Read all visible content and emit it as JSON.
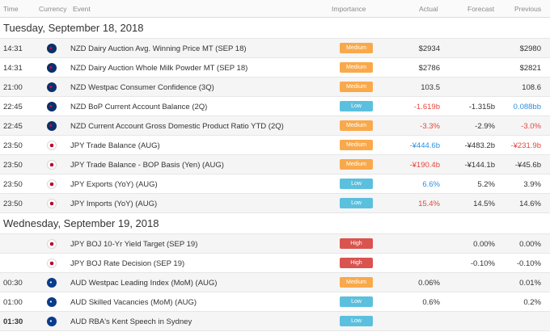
{
  "columns": {
    "time": "Time",
    "currency": "Currency",
    "event": "Event",
    "importance": "Importance",
    "actual": "Actual",
    "forecast": "Forecast",
    "previous": "Previous"
  },
  "colors": {
    "medium": "#f9a94b",
    "low": "#5bc0de",
    "high": "#d9534f",
    "negative": "#e6453c",
    "positive": "#2f8fe0"
  },
  "days": [
    {
      "date": "Tuesday, September 18, 2018",
      "events": [
        {
          "time": "14:31",
          "flag": "nzd-flag-icon",
          "event": "NZD Dairy Auction Avg. Winning Price MT (SEP 18)",
          "importance": "Medium",
          "actual": "$2934",
          "forecast": "",
          "previous": "$2980"
        },
        {
          "time": "14:31",
          "flag": "nzd-flag-icon",
          "event": "NZD Dairy Auction Whole Milk Powder MT (SEP 18)",
          "importance": "Medium",
          "actual": "$2786",
          "forecast": "",
          "previous": "$2821"
        },
        {
          "time": "21:00",
          "flag": "nzd-flag-icon",
          "event": "NZD Westpac Consumer Confidence (3Q)",
          "importance": "Medium",
          "actual": "103.5",
          "forecast": "",
          "previous": "108.6"
        },
        {
          "time": "22:45",
          "flag": "nzd-flag-icon",
          "event": "NZD BoP Current Account Balance (2Q)",
          "importance": "Low",
          "actual": "-1.619b",
          "forecast": "-1.315b",
          "previous": "0.088bb"
        },
        {
          "time": "22:45",
          "flag": "nzd-flag-icon",
          "event": "NZD Current Account Gross Domestic Product Ratio YTD (2Q)",
          "importance": "Medium",
          "actual": "-3.3%",
          "forecast": "-2.9%",
          "previous": "-3.0%"
        },
        {
          "time": "23:50",
          "flag": "jpy-flag-icon",
          "event": "JPY Trade Balance (AUG)",
          "importance": "Medium",
          "actual": "-¥444.6b",
          "forecast": "-¥483.2b",
          "previous": "-¥231.9b"
        },
        {
          "time": "23:50",
          "flag": "jpy-flag-icon",
          "event": "JPY Trade Balance - BOP Basis (Yen) (AUG)",
          "importance": "Medium",
          "actual": "-¥190.4b",
          "forecast": "-¥144.1b",
          "previous": "-¥45.6b"
        },
        {
          "time": "23:50",
          "flag": "jpy-flag-icon",
          "event": "JPY Exports (YoY) (AUG)",
          "importance": "Low",
          "actual": "6.6%",
          "forecast": "5.2%",
          "previous": "3.9%"
        },
        {
          "time": "23:50",
          "flag": "jpy-flag-icon",
          "event": "JPY Imports (YoY) (AUG)",
          "importance": "Low",
          "actual": "15.4%",
          "forecast": "14.5%",
          "previous": "14.6%"
        }
      ]
    },
    {
      "date": "Wednesday, September 19, 2018",
      "events": [
        {
          "time": "",
          "flag": "jpy-flag-icon",
          "event": "JPY BOJ 10-Yr Yield Target (SEP 19)",
          "importance": "High",
          "actual": "",
          "forecast": "0.00%",
          "previous": "0.00%"
        },
        {
          "time": "",
          "flag": "jpy-flag-icon",
          "event": "JPY BOJ Rate Decision (SEP 19)",
          "importance": "High",
          "actual": "",
          "forecast": "-0.10%",
          "previous": "-0.10%"
        },
        {
          "time": "00:30",
          "flag": "aud-flag-icon",
          "event": "AUD Westpac Leading Index (MoM) (AUG)",
          "importance": "Medium",
          "actual": "0.06%",
          "forecast": "",
          "previous": "0.01%"
        },
        {
          "time": "01:00",
          "flag": "aud-flag-icon",
          "event": "AUD Skilled Vacancies (MoM) (AUG)",
          "importance": "Low",
          "actual": "0.6%",
          "forecast": "",
          "previous": "0.2%"
        },
        {
          "time": "01:30",
          "flag": "aud-flag-icon",
          "event": "AUD RBA's Kent Speech in Sydney",
          "importance": "Low",
          "actual": "",
          "forecast": "",
          "previous": ""
        }
      ]
    }
  ]
}
